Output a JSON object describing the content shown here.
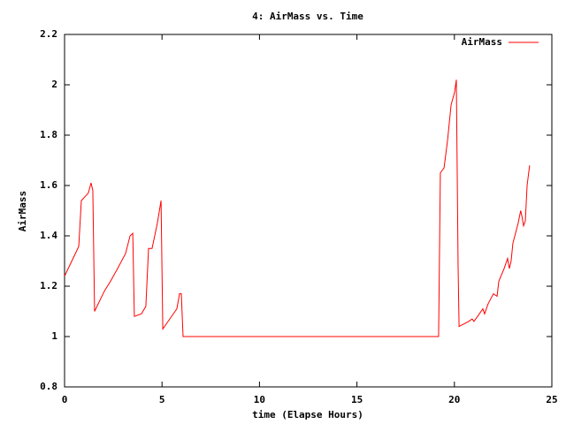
{
  "chart_data": {
    "type": "line",
    "title": "4: AirMass vs. Time",
    "x_label": "time (Elapse Hours)",
    "y_label": "AirMass",
    "legend": "upper right",
    "xlim": [
      0,
      25
    ],
    "xticks": [
      0,
      5,
      10,
      15,
      20,
      25
    ],
    "ylim": [
      0.8,
      2.2
    ],
    "yticks": [
      0.8,
      1,
      1.2,
      1.4,
      1.6,
      1.8,
      2,
      2.2
    ],
    "x": [
      0,
      0.68,
      0.73,
      0.86,
      1.22,
      1.36,
      1.45,
      1.54,
      2.04,
      2.36,
      2.72,
      3.13,
      3.36,
      3.5,
      3.58,
      3.94,
      4.17,
      4.31,
      4.49,
      4.76,
      4.95,
      5.04,
      5.31,
      5.67,
      5.76,
      5.9,
      5.99,
      6.08,
      19.19,
      19.28,
      19.47,
      19.65,
      19.83,
      20.01,
      20.1,
      20.19,
      20.24,
      20.73,
      20.91,
      21.0,
      21.19,
      21.46,
      21.55,
      21.73,
      22.0,
      22.19,
      22.28,
      22.55,
      22.73,
      22.82,
      22.91,
      23.0,
      23.27,
      23.4,
      23.46,
      23.55,
      23.64,
      23.73,
      23.86
    ],
    "series": [
      {
        "name": "AirMass",
        "color": "#ff0000",
        "values": [
          1.24,
          1.35,
          1.36,
          1.54,
          1.57,
          1.61,
          1.58,
          1.1,
          1.18,
          1.22,
          1.27,
          1.33,
          1.4,
          1.41,
          1.08,
          1.09,
          1.12,
          1.35,
          1.35,
          1.45,
          1.54,
          1.03,
          1.06,
          1.1,
          1.11,
          1.17,
          1.17,
          1.0,
          1.0,
          1.65,
          1.67,
          1.78,
          1.92,
          1.97,
          2.02,
          1.28,
          1.04,
          1.06,
          1.07,
          1.06,
          1.08,
          1.11,
          1.09,
          1.13,
          1.17,
          1.16,
          1.22,
          1.27,
          1.31,
          1.27,
          1.3,
          1.37,
          1.45,
          1.5,
          1.48,
          1.44,
          1.46,
          1.6,
          1.68
        ]
      }
    ]
  }
}
